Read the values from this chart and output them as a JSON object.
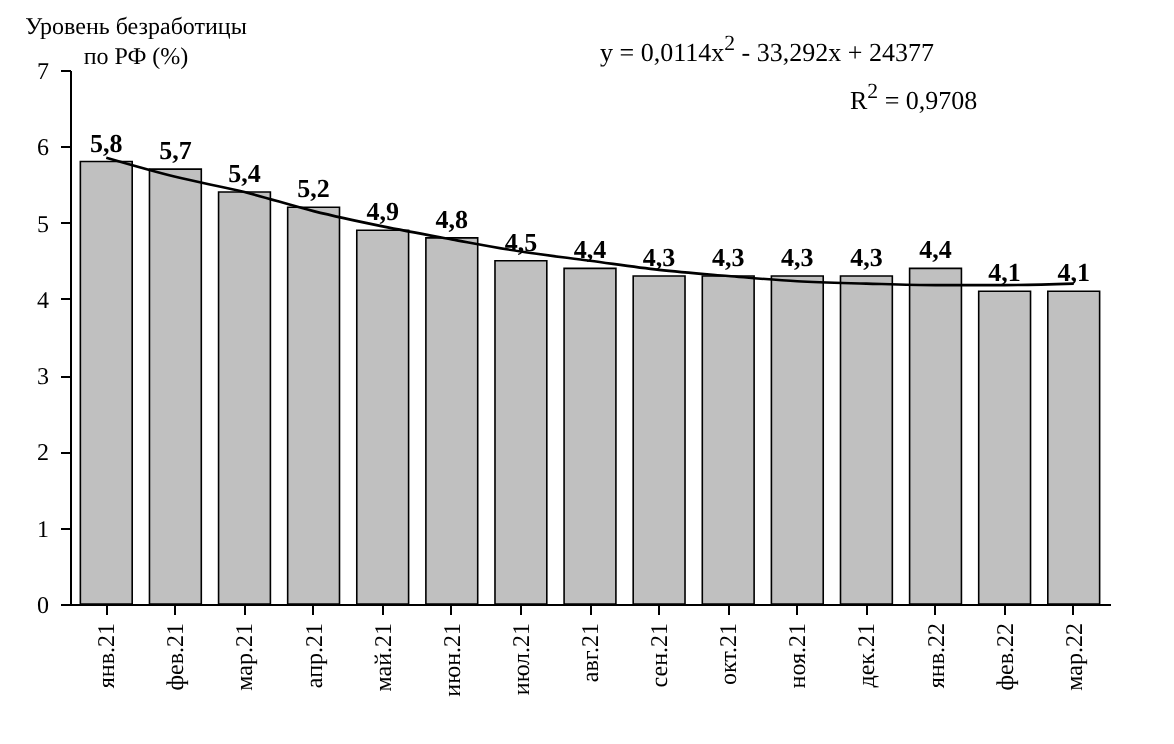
{
  "chart_data": {
    "type": "bar",
    "ylabel": "Уровень безработицы по РФ (%)",
    "categories": [
      "янв.21",
      "фев.21",
      "мар.21",
      "апр.21",
      "май.21",
      "июн.21",
      "июл.21",
      "авг.21",
      "сен.21",
      "окт.21",
      "ноя.21",
      "дек.21",
      "янв.22",
      "фев.22",
      "мар.22"
    ],
    "series": [
      {
        "color": "#c0c0c0",
        "values": [
          5.8,
          5.7,
          5.4,
          5.2,
          4.9,
          4.8,
          4.5,
          4.4,
          4.3,
          4.3,
          4.3,
          4.3,
          4.4,
          4.1,
          4.1
        ],
        "value_labels": [
          "5,8",
          "5,7",
          "5,4",
          "5,2",
          "4,9",
          "4,8",
          "4,5",
          "4,4",
          "4,3",
          "4,3",
          "4,3",
          "4,3",
          "4,4",
          "4,1",
          "4,1"
        ]
      },
      {
        "type": "line",
        "color": "#000000",
        "values": [
          5.85,
          5.6,
          5.4,
          5.15,
          4.95,
          4.78,
          4.62,
          4.5,
          4.38,
          4.3,
          4.23,
          4.2,
          4.18,
          4.18,
          4.2
        ]
      }
    ],
    "ylim": [
      0,
      7
    ],
    "yticks": [
      0,
      1,
      2,
      3,
      4,
      5,
      6,
      7
    ],
    "grid": false,
    "annotations": [
      "y = 0,0114x$^{2}$ - 33,292x + 24377",
      "R$^{2}$ = 0,9708"
    ]
  }
}
